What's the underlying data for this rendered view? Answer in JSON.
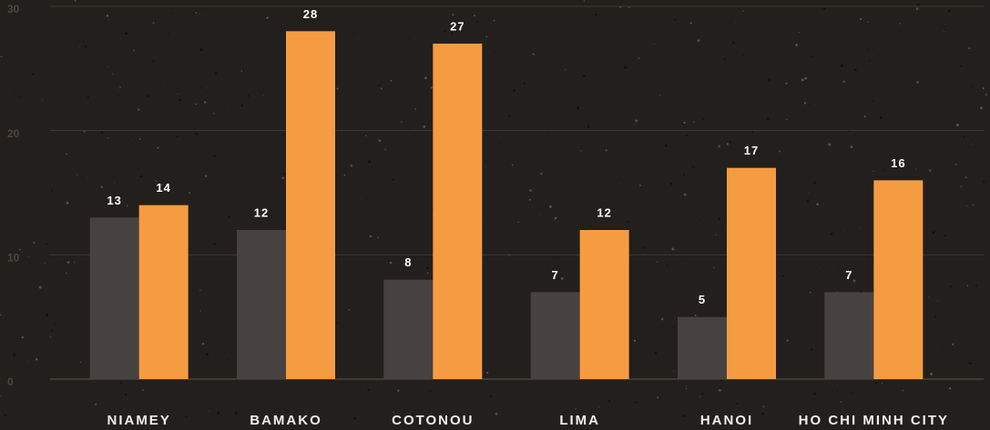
{
  "chart_data": {
    "type": "bar",
    "categories": [
      "NIAMEY",
      "BAMAKO",
      "COTONOU",
      "LIMA",
      "HANOI",
      "HO CHI MINH CITY"
    ],
    "series": [
      {
        "color": "#47423f",
        "values": [
          13,
          12,
          8,
          7,
          5,
          7
        ]
      },
      {
        "color": "#f59c42",
        "values": [
          14,
          28,
          27,
          12,
          17,
          16
        ]
      }
    ],
    "ylim": [
      0,
      30
    ],
    "yticks": [
      0,
      10,
      20,
      30
    ],
    "grid": true
  }
}
